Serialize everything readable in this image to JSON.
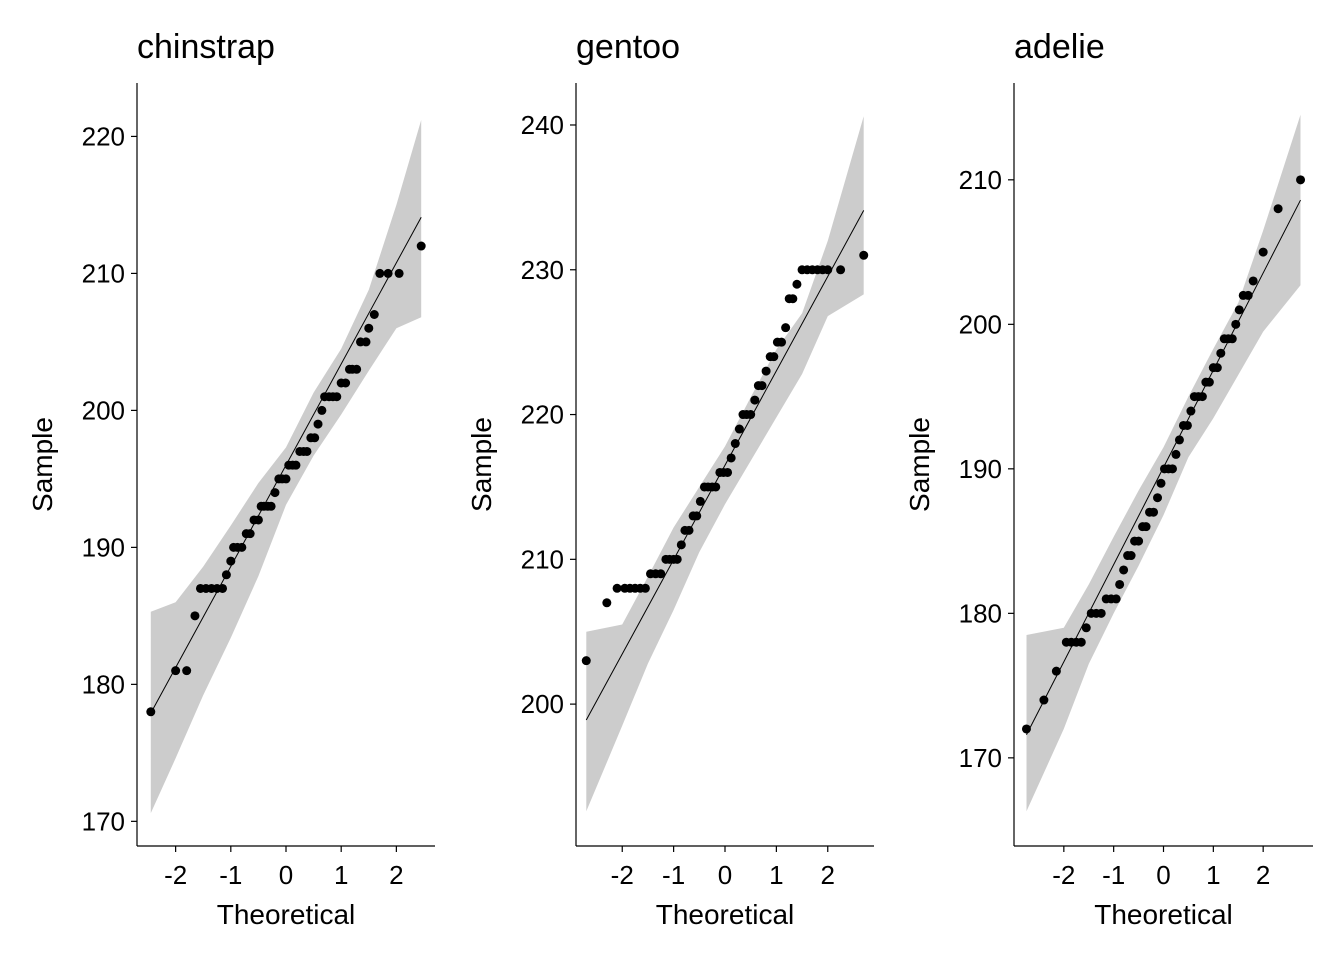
{
  "chart_data": [
    {
      "type": "scatter",
      "subtype": "qq-plot",
      "title": "chinstrap",
      "xlabel": "Theoretical",
      "ylabel": "Sample",
      "xticks": [
        -2,
        -1,
        0,
        1,
        2
      ],
      "yticks": [
        170,
        180,
        190,
        200,
        210,
        220
      ],
      "xlim": [
        -2.7,
        2.7
      ],
      "ylim": [
        168.2,
        223.9
      ],
      "points": [
        [
          -2.45,
          178
        ],
        [
          -2.0,
          181
        ],
        [
          -1.8,
          181
        ],
        [
          -1.65,
          185
        ],
        [
          -1.55,
          187
        ],
        [
          -1.45,
          187
        ],
        [
          -1.35,
          187
        ],
        [
          -1.25,
          187
        ],
        [
          -1.15,
          187
        ],
        [
          -1.08,
          188
        ],
        [
          -1.0,
          189
        ],
        [
          -0.95,
          190
        ],
        [
          -0.88,
          190
        ],
        [
          -0.8,
          190
        ],
        [
          -0.72,
          191
        ],
        [
          -0.65,
          191
        ],
        [
          -0.58,
          192
        ],
        [
          -0.5,
          192
        ],
        [
          -0.45,
          193
        ],
        [
          -0.4,
          193
        ],
        [
          -0.33,
          193
        ],
        [
          -0.27,
          193
        ],
        [
          -0.2,
          194
        ],
        [
          -0.13,
          195
        ],
        [
          -0.07,
          195
        ],
        [
          0.0,
          195
        ],
        [
          0.05,
          196
        ],
        [
          0.12,
          196
        ],
        [
          0.18,
          196
        ],
        [
          0.25,
          197
        ],
        [
          0.32,
          197
        ],
        [
          0.38,
          197
        ],
        [
          0.45,
          198
        ],
        [
          0.52,
          198
        ],
        [
          0.58,
          199
        ],
        [
          0.65,
          200
        ],
        [
          0.7,
          201
        ],
        [
          0.78,
          201
        ],
        [
          0.85,
          201
        ],
        [
          0.92,
          201
        ],
        [
          1.0,
          202
        ],
        [
          1.08,
          202
        ],
        [
          1.15,
          203
        ],
        [
          1.2,
          203
        ],
        [
          1.28,
          203
        ],
        [
          1.35,
          205
        ],
        [
          1.45,
          205
        ],
        [
          1.5,
          206
        ],
        [
          1.6,
          207
        ],
        [
          1.7,
          210
        ],
        [
          1.85,
          210
        ],
        [
          2.05,
          210
        ],
        [
          2.45,
          212
        ]
      ],
      "line": {
        "x": [
          -2.45,
          2.45
        ],
        "y": [
          177.9,
          214.1
        ]
      },
      "band": {
        "x": [
          -2.45,
          -2.0,
          -1.5,
          -1.0,
          -0.5,
          0.0,
          0.5,
          1.0,
          1.5,
          2.0,
          2.45
        ],
        "upper": [
          185.3,
          186.0,
          188.6,
          191.6,
          194.7,
          197.3,
          201.3,
          204.5,
          208.8,
          215.0,
          221.2
        ],
        "lower": [
          170.6,
          174.6,
          179.2,
          183.4,
          187.9,
          193.1,
          196.7,
          199.7,
          202.9,
          206.0,
          206.8
        ]
      }
    },
    {
      "type": "scatter",
      "subtype": "qq-plot",
      "title": "gentoo",
      "xlabel": "Theoretical",
      "ylabel": "Sample",
      "xticks": [
        -2,
        -1,
        0,
        1,
        2
      ],
      "yticks": [
        200,
        210,
        220,
        230,
        240
      ],
      "xlim": [
        -2.9,
        2.9
      ],
      "ylim": [
        190.2,
        242.9
      ],
      "points": [
        [
          -2.7,
          203
        ],
        [
          -2.3,
          207
        ],
        [
          -2.1,
          208
        ],
        [
          -1.95,
          208
        ],
        [
          -1.85,
          208
        ],
        [
          -1.75,
          208
        ],
        [
          -1.65,
          208
        ],
        [
          -1.55,
          208
        ],
        [
          -1.45,
          209
        ],
        [
          -1.35,
          209
        ],
        [
          -1.25,
          209
        ],
        [
          -1.15,
          210
        ],
        [
          -1.08,
          210
        ],
        [
          -1.0,
          210
        ],
        [
          -0.93,
          210
        ],
        [
          -0.85,
          211
        ],
        [
          -0.78,
          212
        ],
        [
          -0.7,
          212
        ],
        [
          -0.62,
          213
        ],
        [
          -0.55,
          213
        ],
        [
          -0.48,
          214
        ],
        [
          -0.4,
          215
        ],
        [
          -0.33,
          215
        ],
        [
          -0.25,
          215
        ],
        [
          -0.18,
          215
        ],
        [
          -0.1,
          216
        ],
        [
          -0.03,
          216
        ],
        [
          0.05,
          216
        ],
        [
          0.12,
          217
        ],
        [
          0.2,
          218
        ],
        [
          0.28,
          219
        ],
        [
          0.35,
          220
        ],
        [
          0.42,
          220
        ],
        [
          0.5,
          220
        ],
        [
          0.58,
          221
        ],
        [
          0.65,
          222
        ],
        [
          0.72,
          222
        ],
        [
          0.8,
          223
        ],
        [
          0.88,
          224
        ],
        [
          0.95,
          224
        ],
        [
          1.02,
          225
        ],
        [
          1.1,
          225
        ],
        [
          1.18,
          226
        ],
        [
          1.25,
          228
        ],
        [
          1.32,
          228
        ],
        [
          1.4,
          229
        ],
        [
          1.5,
          230
        ],
        [
          1.6,
          230
        ],
        [
          1.7,
          230
        ],
        [
          1.8,
          230
        ],
        [
          1.9,
          230
        ],
        [
          2.0,
          230
        ],
        [
          2.25,
          230
        ],
        [
          2.7,
          231
        ]
      ],
      "line": {
        "x": [
          -2.7,
          2.7
        ],
        "y": [
          198.9,
          234.1
        ]
      },
      "band": {
        "x": [
          -2.7,
          -2.0,
          -1.5,
          -1.0,
          -0.5,
          0.0,
          0.5,
          1.0,
          1.5,
          2.0,
          2.7
        ],
        "upper": [
          205.0,
          205.5,
          208.8,
          212.2,
          215.0,
          217.8,
          221.2,
          224.5,
          227.0,
          232.0,
          240.6
        ],
        "lower": [
          192.6,
          198.5,
          202.8,
          206.5,
          210.5,
          213.8,
          216.8,
          219.8,
          222.8,
          226.8,
          228.3
        ]
      }
    },
    {
      "type": "scatter",
      "subtype": "qq-plot",
      "title": "adelie",
      "xlabel": "Theoretical",
      "ylabel": "Sample",
      "xticks": [
        -2,
        -1,
        0,
        1,
        2
      ],
      "yticks": [
        170,
        180,
        190,
        200,
        210
      ],
      "xlim": [
        -3.0,
        3.0
      ],
      "ylim": [
        163.9,
        216.7
      ],
      "points": [
        [
          -2.75,
          172
        ],
        [
          -2.4,
          174
        ],
        [
          -2.15,
          176
        ],
        [
          -1.95,
          178
        ],
        [
          -1.85,
          178
        ],
        [
          -1.75,
          178
        ],
        [
          -1.65,
          178
        ],
        [
          -1.55,
          179
        ],
        [
          -1.45,
          180
        ],
        [
          -1.35,
          180
        ],
        [
          -1.25,
          180
        ],
        [
          -1.15,
          181
        ],
        [
          -1.05,
          181
        ],
        [
          -0.95,
          181
        ],
        [
          -0.88,
          182
        ],
        [
          -0.8,
          183
        ],
        [
          -0.72,
          184
        ],
        [
          -0.65,
          184
        ],
        [
          -0.58,
          185
        ],
        [
          -0.5,
          185
        ],
        [
          -0.42,
          186
        ],
        [
          -0.35,
          186
        ],
        [
          -0.28,
          187
        ],
        [
          -0.2,
          187
        ],
        [
          -0.12,
          188
        ],
        [
          -0.05,
          189
        ],
        [
          0.02,
          190
        ],
        [
          0.1,
          190
        ],
        [
          0.18,
          190
        ],
        [
          0.25,
          191
        ],
        [
          0.32,
          192
        ],
        [
          0.4,
          193
        ],
        [
          0.48,
          193
        ],
        [
          0.55,
          194
        ],
        [
          0.62,
          195
        ],
        [
          0.7,
          195
        ],
        [
          0.78,
          195
        ],
        [
          0.85,
          196
        ],
        [
          0.92,
          196
        ],
        [
          1.0,
          197
        ],
        [
          1.08,
          197
        ],
        [
          1.15,
          198
        ],
        [
          1.22,
          199
        ],
        [
          1.3,
          199
        ],
        [
          1.38,
          199
        ],
        [
          1.45,
          200
        ],
        [
          1.52,
          201
        ],
        [
          1.6,
          202
        ],
        [
          1.7,
          202
        ],
        [
          1.8,
          203
        ],
        [
          2.0,
          205
        ],
        [
          2.3,
          208
        ],
        [
          2.75,
          210
        ]
      ],
      "line": {
        "x": [
          -2.75,
          2.75
        ],
        "y": [
          171.6,
          208.6
        ]
      },
      "band": {
        "x": [
          -2.75,
          -2.0,
          -1.5,
          -1.0,
          -0.5,
          0.0,
          0.5,
          1.0,
          1.5,
          2.0,
          2.75
        ],
        "upper": [
          178.5,
          179.0,
          182.0,
          185.3,
          188.5,
          191.5,
          195.0,
          198.3,
          201.5,
          206.5,
          214.5
        ],
        "lower": [
          166.3,
          172.0,
          176.5,
          180.0,
          183.3,
          186.8,
          190.8,
          193.5,
          196.5,
          199.5,
          202.7
        ]
      }
    }
  ]
}
